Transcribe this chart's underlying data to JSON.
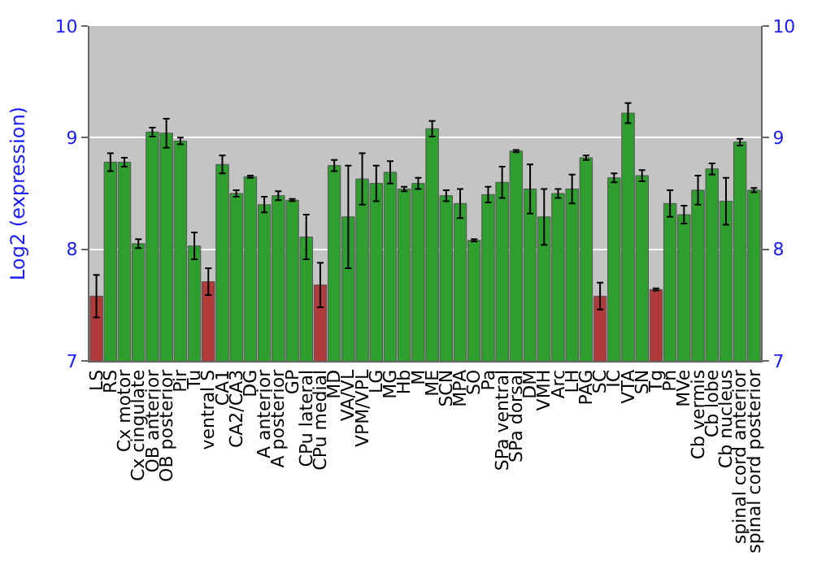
{
  "chart_data": {
    "type": "bar",
    "ylabel": "Log2 (expression)",
    "categories": [
      "LS",
      "RS",
      "Cx motor",
      "Cx cingulate",
      "OB anterior",
      "OB posterior",
      "Pir",
      "Tu",
      "ventral S",
      "CA1",
      "CA2/CA3",
      "DG",
      "A anterior",
      "A posterior",
      "GP",
      "CPu lateral",
      "CPu medial",
      "MD",
      "VA/VL",
      "VPM/VPL",
      "LG",
      "MG",
      "Hb",
      "M",
      "ME",
      "SCN",
      "MPA",
      "SO",
      "Pa",
      "SPa ventral",
      "SPa dorsal",
      "DM",
      "VMH",
      "Arc",
      "LH",
      "PAG",
      "SC",
      "IC",
      "VTA",
      "SN",
      "Tg",
      "Pn",
      "MVe",
      "Cb vermis",
      "Cb lobe",
      "Cb nucleus",
      "spinal cord anterior",
      "spinal cord posterior"
    ],
    "values": [
      7.58,
      8.78,
      8.78,
      8.05,
      9.05,
      9.04,
      8.97,
      8.03,
      7.71,
      8.76,
      8.5,
      8.65,
      8.4,
      8.48,
      8.44,
      8.11,
      7.68,
      8.75,
      8.29,
      8.63,
      8.59,
      8.69,
      8.54,
      8.59,
      9.08,
      8.48,
      8.41,
      8.08,
      8.49,
      8.6,
      8.88,
      8.54,
      8.29,
      8.5,
      8.54,
      8.82,
      7.58,
      8.64,
      9.22,
      8.66,
      7.64,
      8.41,
      8.31,
      8.53,
      8.72,
      8.43,
      8.96,
      8.53
    ],
    "errors": [
      0.19,
      0.08,
      0.04,
      0.04,
      0.04,
      0.13,
      0.03,
      0.12,
      0.12,
      0.08,
      0.03,
      0.01,
      0.07,
      0.04,
      0.01,
      0.2,
      0.2,
      0.05,
      0.46,
      0.23,
      0.16,
      0.1,
      0.02,
      0.05,
      0.07,
      0.05,
      0.13,
      0.01,
      0.07,
      0.14,
      0.01,
      0.22,
      0.25,
      0.04,
      0.13,
      0.02,
      0.12,
      0.04,
      0.09,
      0.05,
      0.01,
      0.12,
      0.08,
      0.13,
      0.05,
      0.21,
      0.03,
      0.02
    ],
    "colors": [
      "#b03a3a",
      "#2e9e2e",
      "#2e9e2e",
      "#2e9e2e",
      "#2e9e2e",
      "#2e9e2e",
      "#2e9e2e",
      "#2e9e2e",
      "#b03a3a",
      "#2e9e2e",
      "#2e9e2e",
      "#2e9e2e",
      "#2e9e2e",
      "#2e9e2e",
      "#2e9e2e",
      "#2e9e2e",
      "#b03a3a",
      "#2e9e2e",
      "#2e9e2e",
      "#2e9e2e",
      "#2e9e2e",
      "#2e9e2e",
      "#2e9e2e",
      "#2e9e2e",
      "#2e9e2e",
      "#2e9e2e",
      "#2e9e2e",
      "#2e9e2e",
      "#2e9e2e",
      "#2e9e2e",
      "#2e9e2e",
      "#2e9e2e",
      "#2e9e2e",
      "#2e9e2e",
      "#2e9e2e",
      "#2e9e2e",
      "#b03a3a",
      "#2e9e2e",
      "#2e9e2e",
      "#2e9e2e",
      "#b03a3a",
      "#2e9e2e",
      "#2e9e2e",
      "#2e9e2e",
      "#2e9e2e",
      "#2e9e2e",
      "#2e9e2e",
      "#2e9e2e"
    ],
    "ylim": [
      7,
      10
    ],
    "yticks": [
      7,
      8,
      9,
      10
    ],
    "y2lim": [
      7,
      10
    ],
    "y2ticks": [
      7,
      8,
      9,
      10
    ],
    "grid": "y"
  }
}
